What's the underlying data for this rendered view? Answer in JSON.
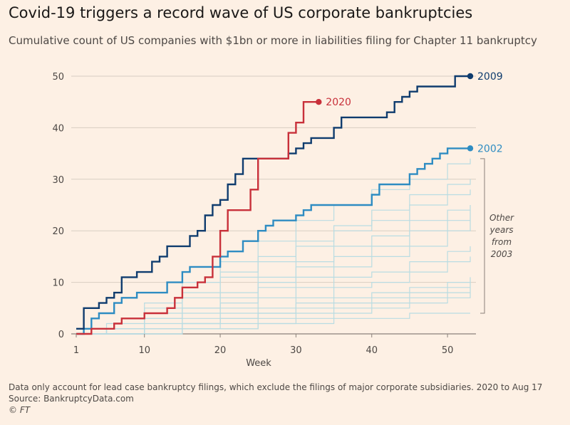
{
  "title": "Covid-19 triggers a record wave of US corporate bankruptcies",
  "subtitle": "Cumulative count of US companies with $1bn or more in liabilities filing for Chapter 11 bankruptcy",
  "footer": {
    "note": "Data only account for lead case bankruptcy filings, which exclude the filings of major corporate subsidiaries. 2020 to Aug 17",
    "source": "Source: BankruptcyData.com",
    "credit": "© FT"
  },
  "colors": {
    "background": "#fdf0e4",
    "grid": "#d8cdc2",
    "series_2009": "#0f3c6e",
    "series_2020": "#c8303a",
    "series_2002": "#2e8cc2",
    "other_years": "#b9dce2"
  },
  "chart_data": {
    "type": "line",
    "step": true,
    "xlabel": "Week",
    "ylabel": "",
    "xlim": [
      1,
      53
    ],
    "ylim": [
      0,
      50
    ],
    "xticks": [
      1,
      10,
      20,
      30,
      40,
      50
    ],
    "yticks": [
      0,
      10,
      20,
      30,
      40,
      50
    ],
    "grid": "horizontal",
    "series": [
      {
        "name": "2009",
        "label": "2009",
        "highlight": true,
        "points": [
          [
            1,
            1
          ],
          [
            2,
            5
          ],
          [
            4,
            6
          ],
          [
            5,
            7
          ],
          [
            6,
            8
          ],
          [
            7,
            11
          ],
          [
            9,
            12
          ],
          [
            11,
            14
          ],
          [
            12,
            15
          ],
          [
            13,
            17
          ],
          [
            16,
            19
          ],
          [
            17,
            20
          ],
          [
            18,
            23
          ],
          [
            19,
            25
          ],
          [
            20,
            26
          ],
          [
            21,
            29
          ],
          [
            22,
            31
          ],
          [
            23,
            34
          ],
          [
            26,
            34
          ],
          [
            27,
            34
          ],
          [
            29,
            35
          ],
          [
            30,
            36
          ],
          [
            31,
            37
          ],
          [
            32,
            38
          ],
          [
            35,
            40
          ],
          [
            36,
            42
          ],
          [
            42,
            43
          ],
          [
            43,
            45
          ],
          [
            44,
            46
          ],
          [
            45,
            47
          ],
          [
            46,
            48
          ],
          [
            51,
            50
          ],
          [
            53,
            50
          ]
        ]
      },
      {
        "name": "2020",
        "label": "2020",
        "highlight": true,
        "points": [
          [
            1,
            0
          ],
          [
            2,
            0
          ],
          [
            3,
            1
          ],
          [
            6,
            2
          ],
          [
            7,
            3
          ],
          [
            10,
            4
          ],
          [
            13,
            5
          ],
          [
            14,
            7
          ],
          [
            15,
            9
          ],
          [
            17,
            10
          ],
          [
            18,
            11
          ],
          [
            19,
            15
          ],
          [
            20,
            20
          ],
          [
            21,
            24
          ],
          [
            24,
            28
          ],
          [
            25,
            34
          ],
          [
            28,
            34
          ],
          [
            29,
            39
          ],
          [
            30,
            41
          ],
          [
            31,
            45
          ],
          [
            33,
            45
          ]
        ]
      },
      {
        "name": "2002",
        "label": "2002",
        "highlight": true,
        "points": [
          [
            1,
            0
          ],
          [
            2,
            1
          ],
          [
            3,
            3
          ],
          [
            4,
            4
          ],
          [
            6,
            6
          ],
          [
            7,
            7
          ],
          [
            9,
            8
          ],
          [
            13,
            10
          ],
          [
            15,
            12
          ],
          [
            16,
            13
          ],
          [
            20,
            15
          ],
          [
            21,
            16
          ],
          [
            23,
            18
          ],
          [
            25,
            20
          ],
          [
            26,
            21
          ],
          [
            27,
            22
          ],
          [
            30,
            23
          ],
          [
            31,
            24
          ],
          [
            32,
            25
          ],
          [
            40,
            27
          ],
          [
            41,
            29
          ],
          [
            45,
            31
          ],
          [
            46,
            32
          ],
          [
            47,
            33
          ],
          [
            48,
            34
          ],
          [
            49,
            35
          ],
          [
            50,
            36
          ],
          [
            53,
            36
          ]
        ]
      }
    ],
    "other_years": [
      {
        "points": [
          [
            1,
            0
          ],
          [
            5,
            2
          ],
          [
            10,
            6
          ],
          [
            15,
            10
          ],
          [
            20,
            14
          ],
          [
            25,
            18
          ],
          [
            30,
            22
          ],
          [
            35,
            25
          ],
          [
            40,
            28
          ],
          [
            45,
            30
          ],
          [
            50,
            33
          ],
          [
            53,
            34
          ]
        ]
      },
      {
        "points": [
          [
            1,
            0
          ],
          [
            5,
            1
          ],
          [
            10,
            5
          ],
          [
            15,
            8
          ],
          [
            20,
            12
          ],
          [
            25,
            15
          ],
          [
            30,
            18
          ],
          [
            35,
            21
          ],
          [
            40,
            24
          ],
          [
            45,
            27
          ],
          [
            50,
            29
          ],
          [
            53,
            30
          ]
        ]
      },
      {
        "points": [
          [
            1,
            0
          ],
          [
            5,
            1
          ],
          [
            10,
            4
          ],
          [
            15,
            7
          ],
          [
            20,
            11
          ],
          [
            25,
            14
          ],
          [
            30,
            17
          ],
          [
            35,
            20
          ],
          [
            40,
            22
          ],
          [
            45,
            25
          ],
          [
            50,
            27
          ],
          [
            53,
            28
          ]
        ]
      },
      {
        "points": [
          [
            1,
            0
          ],
          [
            5,
            1
          ],
          [
            10,
            3
          ],
          [
            15,
            5
          ],
          [
            20,
            8
          ],
          [
            25,
            11
          ],
          [
            30,
            14
          ],
          [
            35,
            17
          ],
          [
            40,
            19
          ],
          [
            45,
            22
          ],
          [
            50,
            24
          ],
          [
            53,
            25
          ]
        ]
      },
      {
        "points": [
          [
            1,
            0
          ],
          [
            5,
            1
          ],
          [
            10,
            3
          ],
          [
            15,
            5
          ],
          [
            20,
            7
          ],
          [
            25,
            10
          ],
          [
            30,
            13
          ],
          [
            35,
            15
          ],
          [
            40,
            17
          ],
          [
            45,
            20
          ],
          [
            50,
            22
          ],
          [
            53,
            24
          ]
        ]
      },
      {
        "points": [
          [
            1,
            0
          ],
          [
            5,
            0
          ],
          [
            10,
            2
          ],
          [
            15,
            4
          ],
          [
            20,
            6
          ],
          [
            25,
            9
          ],
          [
            30,
            11
          ],
          [
            35,
            13
          ],
          [
            40,
            15
          ],
          [
            45,
            17
          ],
          [
            50,
            20
          ],
          [
            53,
            22
          ]
        ]
      },
      {
        "points": [
          [
            1,
            0
          ],
          [
            5,
            0
          ],
          [
            10,
            1
          ],
          [
            15,
            3
          ],
          [
            20,
            5
          ],
          [
            25,
            7
          ],
          [
            30,
            9
          ],
          [
            35,
            11
          ],
          [
            40,
            12
          ],
          [
            45,
            14
          ],
          [
            50,
            16
          ],
          [
            53,
            17
          ]
        ]
      },
      {
        "points": [
          [
            1,
            0
          ],
          [
            5,
            0
          ],
          [
            10,
            1
          ],
          [
            15,
            2
          ],
          [
            20,
            4
          ],
          [
            25,
            5
          ],
          [
            30,
            7
          ],
          [
            35,
            9
          ],
          [
            40,
            10
          ],
          [
            45,
            12
          ],
          [
            50,
            14
          ],
          [
            53,
            15
          ]
        ]
      },
      {
        "points": [
          [
            1,
            0
          ],
          [
            5,
            0
          ],
          [
            10,
            1
          ],
          [
            15,
            2
          ],
          [
            20,
            3
          ],
          [
            25,
            4
          ],
          [
            30,
            6
          ],
          [
            35,
            7
          ],
          [
            40,
            8
          ],
          [
            45,
            9
          ],
          [
            50,
            10
          ],
          [
            53,
            11
          ]
        ]
      },
      {
        "points": [
          [
            1,
            0
          ],
          [
            5,
            0
          ],
          [
            10,
            1
          ],
          [
            15,
            2
          ],
          [
            20,
            3
          ],
          [
            25,
            4
          ],
          [
            30,
            5
          ],
          [
            35,
            6
          ],
          [
            40,
            7
          ],
          [
            45,
            8
          ],
          [
            50,
            9
          ],
          [
            53,
            10
          ]
        ]
      },
      {
        "points": [
          [
            1,
            0
          ],
          [
            5,
            0
          ],
          [
            10,
            0
          ],
          [
            15,
            1
          ],
          [
            20,
            2
          ],
          [
            25,
            3
          ],
          [
            30,
            4
          ],
          [
            35,
            5
          ],
          [
            40,
            6
          ],
          [
            45,
            7
          ],
          [
            50,
            8
          ],
          [
            53,
            9
          ]
        ]
      },
      {
        "points": [
          [
            1,
            0
          ],
          [
            5,
            0
          ],
          [
            10,
            0
          ],
          [
            15,
            1
          ],
          [
            20,
            1
          ],
          [
            25,
            2
          ],
          [
            30,
            3
          ],
          [
            35,
            4
          ],
          [
            40,
            5
          ],
          [
            45,
            6
          ],
          [
            50,
            7
          ],
          [
            53,
            8
          ]
        ]
      },
      {
        "points": [
          [
            1,
            0
          ],
          [
            5,
            0
          ],
          [
            10,
            0
          ],
          [
            15,
            1
          ],
          [
            20,
            1
          ],
          [
            25,
            2
          ],
          [
            30,
            2
          ],
          [
            35,
            3
          ],
          [
            40,
            3
          ],
          [
            45,
            4
          ],
          [
            50,
            4
          ],
          [
            53,
            4
          ]
        ]
      }
    ],
    "annotations": {
      "bracket_label": [
        "Other",
        "years",
        "from",
        "2003"
      ],
      "bracket_range": [
        4,
        34
      ]
    }
  }
}
